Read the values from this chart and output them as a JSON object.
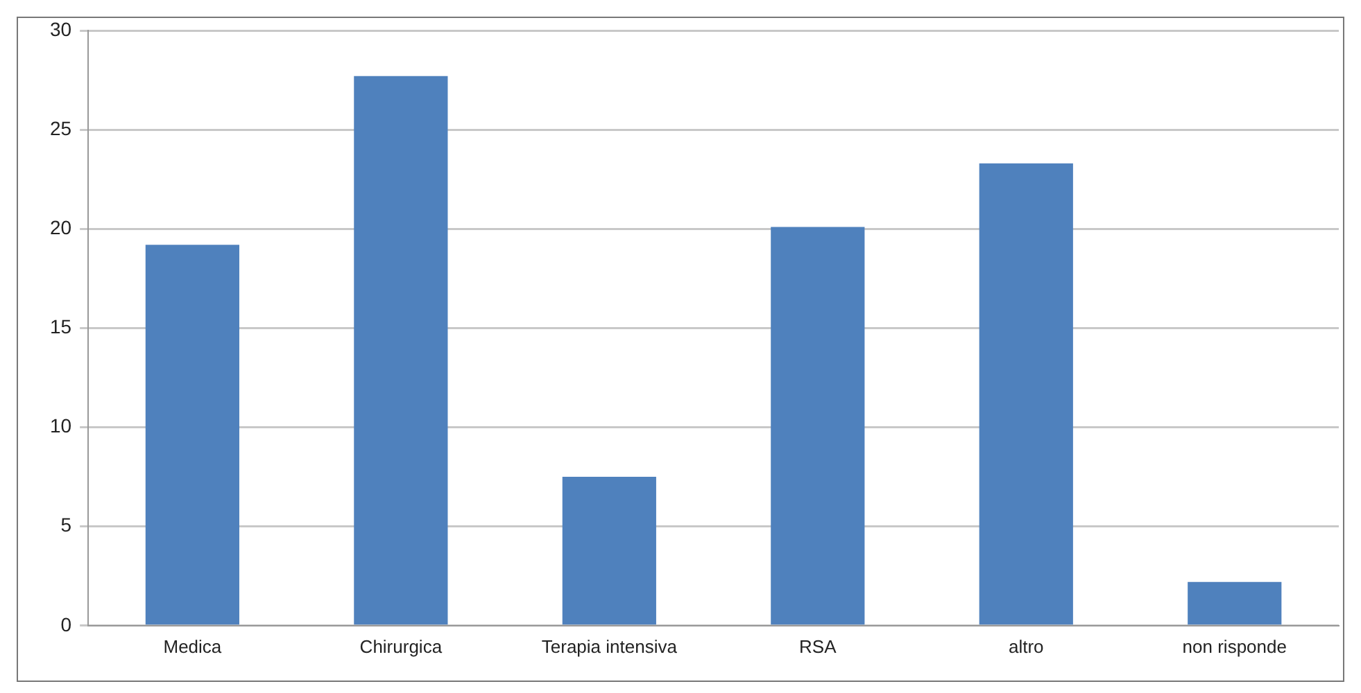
{
  "chart_data": {
    "type": "bar",
    "categories": [
      "Medica",
      "Chirurgica",
      "Terapia intensiva",
      "RSA",
      "altro",
      "non risponde"
    ],
    "values": [
      19.2,
      27.7,
      7.5,
      20.1,
      23.3,
      2.2
    ],
    "color": "#4f81bd",
    "ylim": [
      0,
      30
    ],
    "yticks": [
      0,
      5,
      10,
      15,
      20,
      25,
      30
    ],
    "grid": "y",
    "legend": false
  }
}
